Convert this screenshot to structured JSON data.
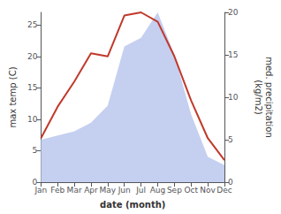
{
  "chart_data": {
    "type": "line",
    "categories": [
      "Jan",
      "Feb",
      "Mar",
      "Apr",
      "May",
      "Jun",
      "Jul",
      "Aug",
      "Sep",
      "Oct",
      "Nov",
      "Dec"
    ],
    "xlabel": "date (month)",
    "ylabel": "max temp (C)",
    "y2label": "med. precipitation\n(kg/m2)",
    "ylim": [
      0,
      27
    ],
    "yticks": [
      0,
      5,
      10,
      15,
      20,
      25
    ],
    "y2lim": [
      0,
      20
    ],
    "y2ticks": [
      0,
      5,
      10,
      15,
      20
    ],
    "grid": false,
    "series": [
      {
        "type": "area",
        "axis": "y2",
        "color": "#c5cff0",
        "values": [
          5,
          5.5,
          6,
          7,
          9,
          16,
          17,
          20,
          15,
          8,
          3,
          2
        ]
      },
      {
        "type": "line",
        "color": "#c0392b",
        "values": [
          7,
          12,
          16,
          20.5,
          20,
          26.5,
          27,
          25.5,
          20,
          13,
          7,
          3.5
        ]
      }
    ]
  }
}
